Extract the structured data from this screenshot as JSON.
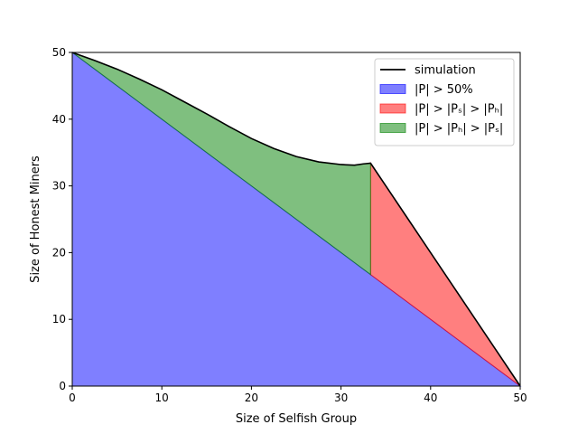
{
  "chart_data": {
    "type": "area",
    "title": "",
    "xlabel": "Size of Selfish Group",
    "ylabel": "Size of Honest Miners",
    "xlim": [
      0,
      50
    ],
    "ylim": [
      0,
      50
    ],
    "xticks": [
      0,
      10,
      20,
      30,
      40,
      50
    ],
    "yticks": [
      0,
      10,
      20,
      30,
      40,
      50
    ],
    "grid": false,
    "legend_position": "top-right",
    "series": [
      {
        "name": "simulation",
        "type": "line",
        "color": "#000000",
        "x": [
          0,
          2.5,
          5,
          7.5,
          10,
          12.5,
          15,
          17.5,
          20,
          22.5,
          25,
          27.5,
          30,
          31.5,
          32.5,
          33.3,
          35,
          37.5,
          40,
          42.5,
          45,
          47.5,
          50
        ],
        "y": [
          50,
          48.8,
          47.5,
          46.0,
          44.4,
          42.6,
          40.8,
          38.9,
          37.1,
          35.6,
          34.4,
          33.6,
          33.2,
          33.1,
          33.3,
          33.4,
          30.0,
          25.0,
          20.0,
          15.0,
          10.0,
          5.0,
          0
        ]
      },
      {
        "name": "|P| > 50%",
        "type": "area",
        "color": "#0000ff",
        "opacity": 0.5,
        "x": [
          0,
          50
        ],
        "y_upper": [
          50,
          0
        ],
        "y_lower": [
          0,
          0
        ]
      },
      {
        "name": "|P| > |Pₛ| > |Pₕ|",
        "type": "area",
        "color": "#ff0000",
        "opacity": 0.5,
        "x": [
          33.3,
          35,
          37.5,
          40,
          42.5,
          45,
          47.5,
          50
        ],
        "y_upper": [
          33.4,
          30.0,
          25.0,
          20.0,
          15.0,
          10.0,
          5.0,
          0
        ],
        "y_lower": [
          16.7,
          15.0,
          12.5,
          10.0,
          7.5,
          5.0,
          2.5,
          0
        ]
      },
      {
        "name": "|P| > |Pₕ| > |Pₛ|",
        "type": "area",
        "color": "#008000",
        "opacity": 0.5,
        "x": [
          0,
          2.5,
          5,
          7.5,
          10,
          12.5,
          15,
          17.5,
          20,
          22.5,
          25,
          27.5,
          30,
          31.5,
          32.5,
          33.3
        ],
        "y_upper": [
          50,
          48.8,
          47.5,
          46.0,
          44.4,
          42.6,
          40.8,
          38.9,
          37.1,
          35.6,
          34.4,
          33.6,
          33.2,
          33.1,
          33.3,
          33.4
        ],
        "y_lower": [
          50,
          47.5,
          45.0,
          42.5,
          40.0,
          37.5,
          35.0,
          32.5,
          30.0,
          27.5,
          25.0,
          22.5,
          20.0,
          18.5,
          17.5,
          16.7
        ]
      }
    ],
    "legend": [
      {
        "label": "simulation",
        "kind": "line",
        "color": "#000000"
      },
      {
        "label": "|P| > 50%",
        "kind": "patch",
        "color": "#0000ff"
      },
      {
        "label": "|P| > |Pₛ| > |Pₕ|",
        "kind": "patch",
        "color": "#ff0000"
      },
      {
        "label": "|P| > |Pₕ| > |Pₛ|",
        "kind": "patch",
        "color": "#008000"
      }
    ]
  }
}
